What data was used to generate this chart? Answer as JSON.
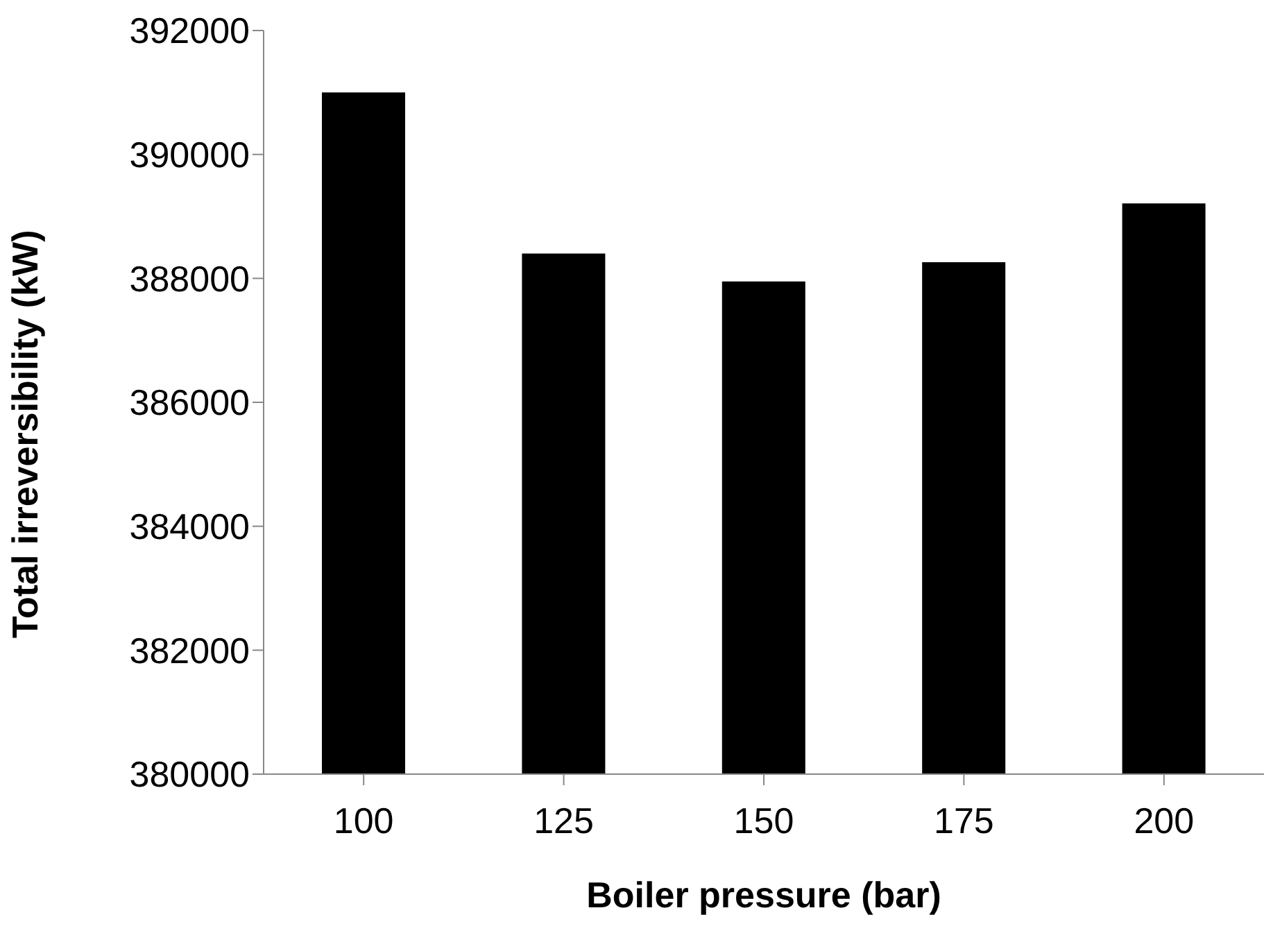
{
  "chart_data": {
    "type": "bar",
    "xlabel": "Boiler pressure (bar)",
    "ylabel": "Total irreversibility (kW)",
    "categories": [
      "100",
      "125",
      "150",
      "175",
      "200"
    ],
    "values": [
      391000,
      388400,
      387950,
      388260,
      389210
    ],
    "color": "#000000",
    "ylim": [
      380000,
      392000
    ],
    "yticks": [
      380000,
      382000,
      384000,
      386000,
      388000,
      390000,
      392000
    ],
    "grid": false,
    "legend": false
  }
}
